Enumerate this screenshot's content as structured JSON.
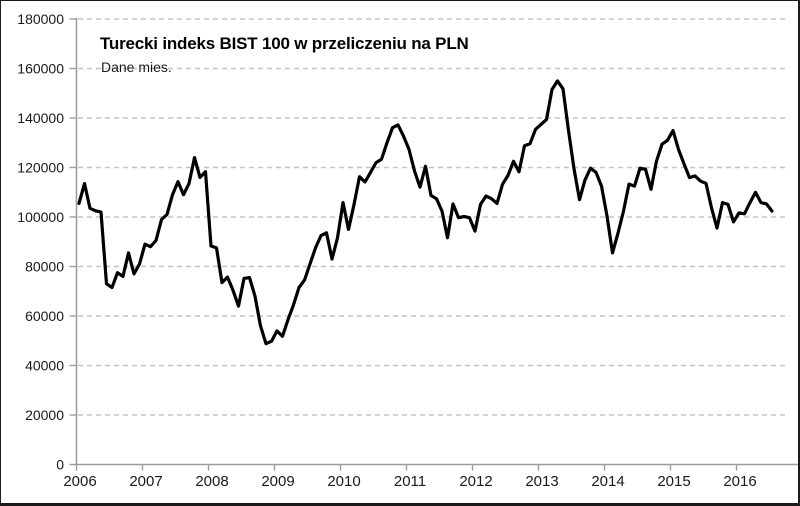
{
  "title": "Turecki indeks BIST 100 w przeliczeniu na PLN",
  "subtitle": "Dane mies.",
  "colors": {
    "line": "#000000",
    "gridline": "#c3c3c3",
    "axis": "#9d9d9d",
    "tick_label": "#1a1a1a",
    "background": "#ffffff",
    "frame_border": "#1a1a1a"
  },
  "chart_data": {
    "type": "line",
    "title": "Turecki indeks BIST 100 w przeliczeniu na PLN",
    "subtitle": "Dane mies.",
    "series_name": "BIST 100 w PLN",
    "frequency": "monthly",
    "x_start": "2006-01",
    "x_end": "2016-07",
    "ylim": [
      0,
      180000
    ],
    "ytick_step": 20000,
    "grid": "horizontal-dashed",
    "legend": "none",
    "ytick_values": [
      0,
      20000,
      40000,
      60000,
      80000,
      100000,
      120000,
      140000,
      160000,
      180000
    ],
    "ytick_labels": [
      "0",
      "20000",
      "40000",
      "60000",
      "80000",
      "100000",
      "120000",
      "140000",
      "160000",
      "180000"
    ],
    "xtick_labels": [
      "2006",
      "2007",
      "2008",
      "2009",
      "2010",
      "2011",
      "2012",
      "2013",
      "2014",
      "2015",
      "2016"
    ],
    "values": [
      105500,
      113500,
      103500,
      102500,
      102000,
      73000,
      71500,
      77500,
      76000,
      85500,
      77000,
      81000,
      89000,
      88000,
      90500,
      99000,
      101000,
      109000,
      114300,
      109000,
      113500,
      124000,
      116000,
      118300,
      88300,
      87500,
      73500,
      75700,
      70400,
      64000,
      75200,
      75500,
      68000,
      56000,
      48800,
      49800,
      54000,
      51800,
      58500,
      64500,
      71500,
      74500,
      81000,
      87500,
      92500,
      93600,
      83000,
      91600,
      105800,
      95000,
      105000,
      116300,
      114200,
      118000,
      122000,
      123300,
      130000,
      136100,
      137200,
      132700,
      127300,
      118600,
      112100,
      120500,
      108700,
      107400,
      102400,
      91600,
      105300,
      99700,
      100200,
      99700,
      94300,
      105100,
      108500,
      107400,
      105500,
      113200,
      116800,
      122500,
      118300,
      128800,
      129600,
      135400,
      137400,
      139400,
      151500,
      155000,
      151800,
      135000,
      119500,
      107000,
      115000,
      119700,
      118000,
      112500,
      100400,
      85500,
      93500,
      102400,
      113300,
      112500,
      119700,
      119300,
      111200,
      122600,
      129400,
      131000,
      134900,
      127300,
      121500,
      115900,
      116600,
      114500,
      113600,
      103700,
      95500,
      105800,
      105100,
      98000,
      101700,
      101300,
      105800,
      110000,
      105800,
      105300,
      102400
    ]
  }
}
